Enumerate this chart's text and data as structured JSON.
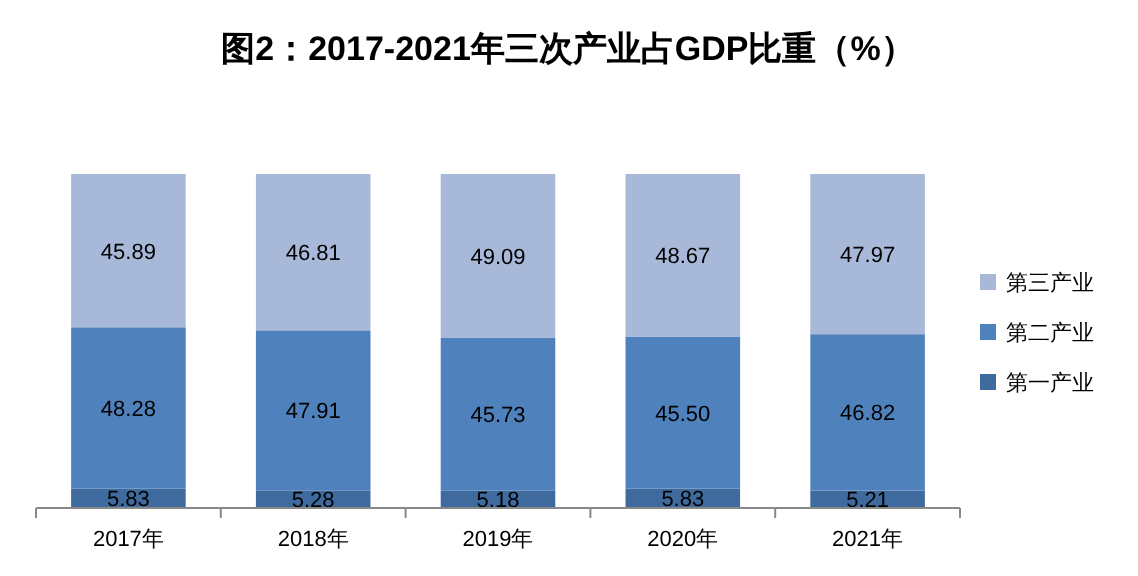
{
  "chart_data": {
    "type": "bar",
    "stacked": true,
    "title": "图2：2017-2021年三次产业占GDP比重（%）",
    "categories": [
      "2017年",
      "2018年",
      "2019年",
      "2020年",
      "2021年"
    ],
    "series": [
      {
        "name": "第一产业",
        "color": "#3e6a9e",
        "values": [
          5.83,
          5.28,
          5.18,
          5.83,
          5.21
        ],
        "value_labels": [
          "5.83",
          "5.28",
          "5.18",
          "5.83",
          "5.21"
        ]
      },
      {
        "name": "第二产业",
        "color": "#4f81bd",
        "values": [
          48.28,
          47.91,
          45.73,
          45.5,
          46.82
        ],
        "value_labels": [
          "48.28",
          "47.91",
          "45.73",
          "45.50",
          "46.82"
        ]
      },
      {
        "name": "第三产业",
        "color": "#a8b8d8",
        "values": [
          45.89,
          46.81,
          49.09,
          48.67,
          47.97
        ],
        "value_labels": [
          "45.89",
          "46.81",
          "49.09",
          "48.67",
          "47.97"
        ]
      }
    ],
    "legend": "right"
  }
}
